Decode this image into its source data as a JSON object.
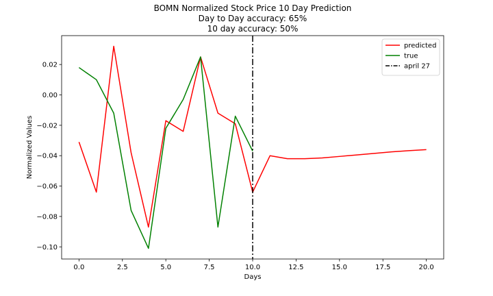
{
  "chart_data": {
    "type": "line",
    "title_lines": [
      "BOMN Normalized Stock Price 10 Day Prediction",
      "Day to Day accuracy: 65%",
      "10 day accuracy: 50%"
    ],
    "xlabel": "Days",
    "ylabel": "Normalized Values",
    "xlim": [
      -1,
      21
    ],
    "ylim": [
      -0.108,
      0.039
    ],
    "xticks": [
      0.0,
      2.5,
      5.0,
      7.5,
      10.0,
      12.5,
      15.0,
      17.5,
      20.0
    ],
    "xtick_labels": [
      "0.0",
      "2.5",
      "5.0",
      "7.5",
      "10.0",
      "12.5",
      "15.0",
      "17.5",
      "20.0"
    ],
    "yticks": [
      0.02,
      0.0,
      -0.02,
      -0.04,
      -0.06,
      -0.08,
      -0.1
    ],
    "ytick_labels": [
      "0.02",
      "0.00",
      "−0.02",
      "−0.04",
      "−0.06",
      "−0.08",
      "−0.10"
    ],
    "grid": false,
    "legend_position": "top-right",
    "series": [
      {
        "name": "predicted",
        "color": "#ff0000",
        "style": "solid",
        "x": [
          0,
          1,
          2,
          3,
          4,
          5,
          6,
          7,
          8,
          9,
          10,
          11,
          12,
          13,
          14,
          15,
          16,
          17,
          18,
          19,
          20
        ],
        "y": [
          -0.031,
          -0.064,
          0.032,
          -0.038,
          -0.087,
          -0.017,
          -0.024,
          0.025,
          -0.012,
          -0.019,
          -0.064,
          -0.04,
          -0.042,
          -0.042,
          -0.0415,
          -0.0405,
          -0.0395,
          -0.0385,
          -0.0375,
          -0.0367,
          -0.036
        ]
      },
      {
        "name": "true",
        "color": "#008000",
        "style": "solid",
        "x": [
          0,
          1,
          2,
          3,
          4,
          5,
          6,
          7,
          8,
          9,
          10
        ],
        "y": [
          0.018,
          0.01,
          -0.012,
          -0.076,
          -0.101,
          -0.022,
          -0.003,
          0.025,
          -0.087,
          -0.014,
          -0.037
        ]
      }
    ],
    "vlines": [
      {
        "name": "april 27",
        "x": 10,
        "color": "#000000",
        "style": "dashdot"
      }
    ]
  }
}
